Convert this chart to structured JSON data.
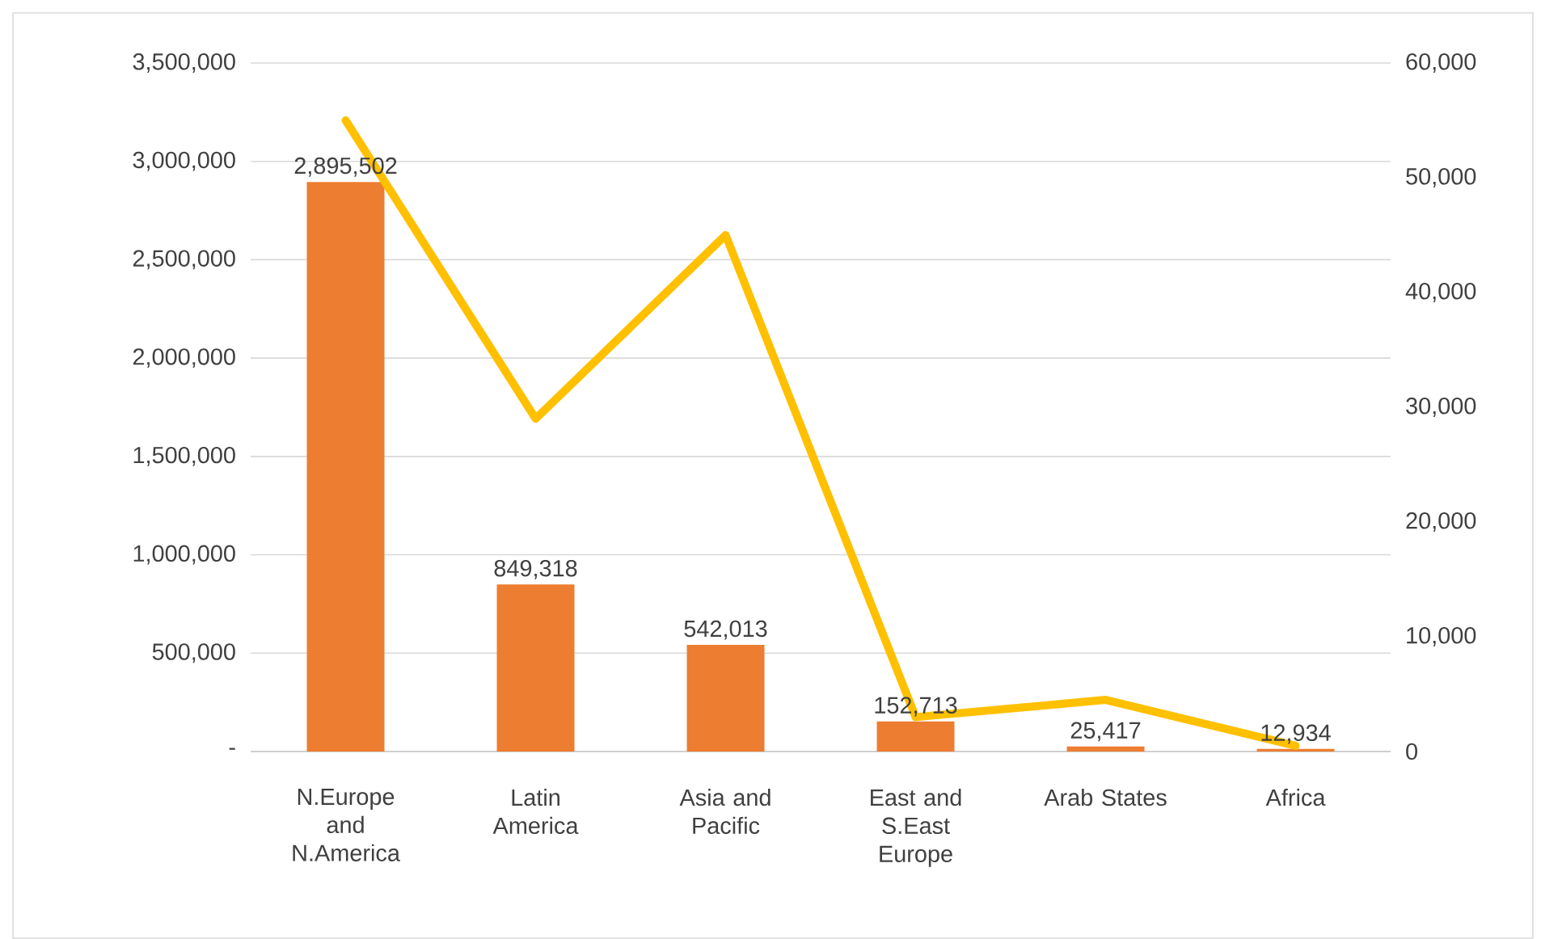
{
  "chart_data": {
    "type": "bar",
    "categories": [
      "N.Europe and N.America",
      "Latin America",
      "Asia and Pacific",
      "East and S.East Europe",
      "Arab States",
      "Africa"
    ],
    "series": [
      {
        "color": "#ed7d31",
        "values": [
          2895502,
          849318,
          542013,
          152713,
          25417,
          12934
        ],
        "value_labels": [
          "2,895,502",
          "849,318",
          "542,013",
          "152,713",
          "25,417",
          "12,934"
        ]
      },
      {
        "type": "line",
        "axis": "y2",
        "color": "#ffc000",
        "values": [
          55000,
          29000,
          45000,
          3000,
          4500,
          500
        ]
      }
    ],
    "ylim": [
      0,
      3500000
    ],
    "yticks": [
      {
        "value": 0,
        "label": "-"
      },
      {
        "value": 500000,
        "label": "500,000"
      },
      {
        "value": 1000000,
        "label": "1,000,000"
      },
      {
        "value": 1500000,
        "label": "1,500,000"
      },
      {
        "value": 2000000,
        "label": "2,000,000"
      },
      {
        "value": 2500000,
        "label": "2,500,000"
      },
      {
        "value": 3000000,
        "label": "3,000,000"
      },
      {
        "value": 3500000,
        "label": "3,500,000"
      }
    ],
    "y2lim": [
      0,
      60000
    ],
    "y2ticks": [
      0,
      {
        "value": 10000,
        "label": "10,000"
      },
      {
        "value": 20000,
        "label": "20,000"
      },
      {
        "value": 30000,
        "label": "30,000"
      },
      {
        "value": 40000,
        "label": "40,000"
      },
      {
        "value": 50000,
        "label": "50,000"
      },
      {
        "value": 60000,
        "label": "60,000"
      }
    ],
    "grid": "y"
  }
}
